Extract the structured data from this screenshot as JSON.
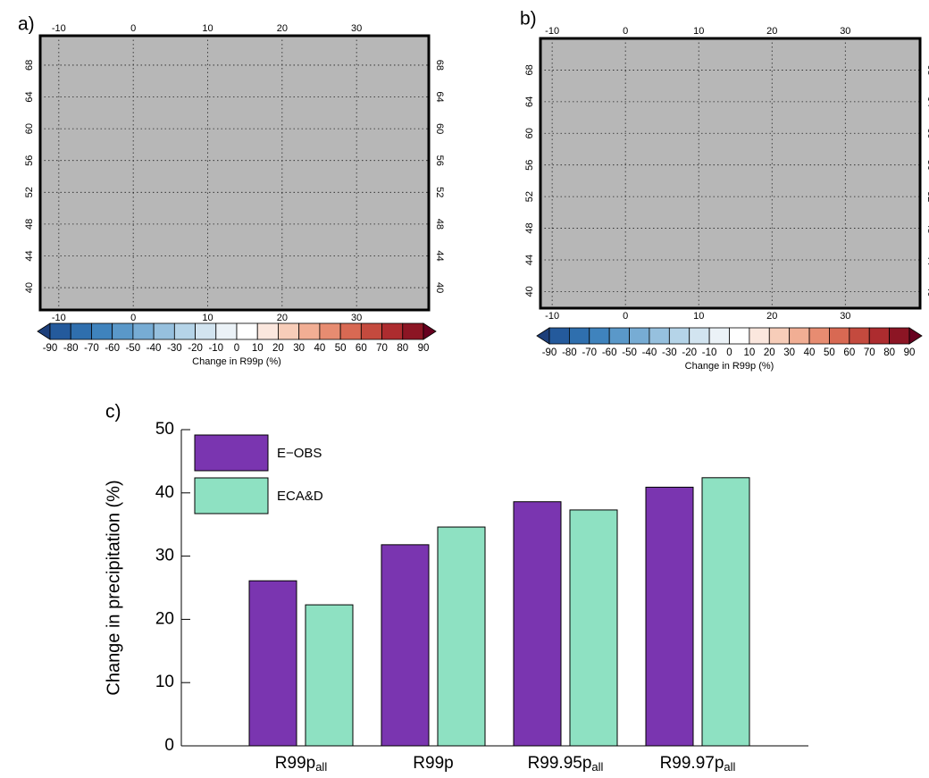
{
  "chart_data": [
    {
      "type": "map",
      "panel": "a)",
      "xlim": [
        -12.5,
        39.7
      ],
      "ylim": [
        37.2,
        71.7
      ],
      "xticks": [
        -10,
        0,
        10,
        20,
        30
      ],
      "yticks": [
        40,
        44,
        48,
        52,
        56,
        60,
        64,
        68
      ],
      "grid": true,
      "background": "#b7b7b7",
      "colorbar": {
        "label": "Change in R99p (%)",
        "ticks": [
          -90,
          -80,
          -70,
          -60,
          -50,
          -40,
          -30,
          -20,
          -10,
          0,
          10,
          20,
          30,
          40,
          50,
          60,
          70,
          80,
          90
        ],
        "colors": [
          "#1d3f7a",
          "#245a9c",
          "#2f6fae",
          "#3f83bd",
          "#5a98c9",
          "#77acd4",
          "#96c0de",
          "#b5d4e8",
          "#d2e4f0",
          "#ebf2f7",
          "#ffffff",
          "#fbe7de",
          "#f7cdb9",
          "#f1ae94",
          "#e78c71",
          "#d86953",
          "#c44a3e",
          "#ad2c2f",
          "#8c1524",
          "#67001f"
        ]
      }
    },
    {
      "type": "map",
      "panel": "b)",
      "xlim": [
        -11.6,
        40.2
      ],
      "ylim": [
        37.9,
        72.0
      ],
      "xticks": [
        -10,
        0,
        10,
        20,
        30
      ],
      "yticks": [
        40,
        44,
        48,
        52,
        56,
        60,
        64,
        68
      ],
      "grid": true,
      "background": "#b7b7b7",
      "colorbar": {
        "label": "Change in R99p (%)",
        "ticks": [
          -90,
          -80,
          -70,
          -60,
          -50,
          -40,
          -30,
          -20,
          -10,
          0,
          10,
          20,
          30,
          40,
          50,
          60,
          70,
          80,
          90
        ],
        "colors": [
          "#1d3f7a",
          "#245a9c",
          "#2f6fae",
          "#3f83bd",
          "#5a98c9",
          "#77acd4",
          "#96c0de",
          "#b5d4e8",
          "#d2e4f0",
          "#ebf2f7",
          "#ffffff",
          "#fbe7de",
          "#f7cdb9",
          "#f1ae94",
          "#e78c71",
          "#d86953",
          "#c44a3e",
          "#ad2c2f",
          "#8c1524",
          "#67001f"
        ]
      }
    },
    {
      "type": "bar",
      "panel": "c)",
      "y_label": "Change in precipitation (%)",
      "categories": [
        [
          "R99p",
          "all"
        ],
        [
          "R99p"
        ],
        [
          "R99.95p",
          "all"
        ],
        [
          "R99.97p",
          "all"
        ]
      ],
      "series": [
        {
          "name": "E−OBS",
          "color": "#7a35b0",
          "values": [
            26.1,
            31.8,
            38.6,
            40.9
          ]
        },
        {
          "name": "ECA&D",
          "color": "#8ee1c2",
          "values": [
            22.3,
            34.6,
            37.3,
            42.4
          ]
        }
      ],
      "ylim": [
        0,
        50
      ],
      "yticks": [
        0,
        10,
        20,
        30,
        40,
        50
      ],
      "legend": "upper left"
    }
  ]
}
